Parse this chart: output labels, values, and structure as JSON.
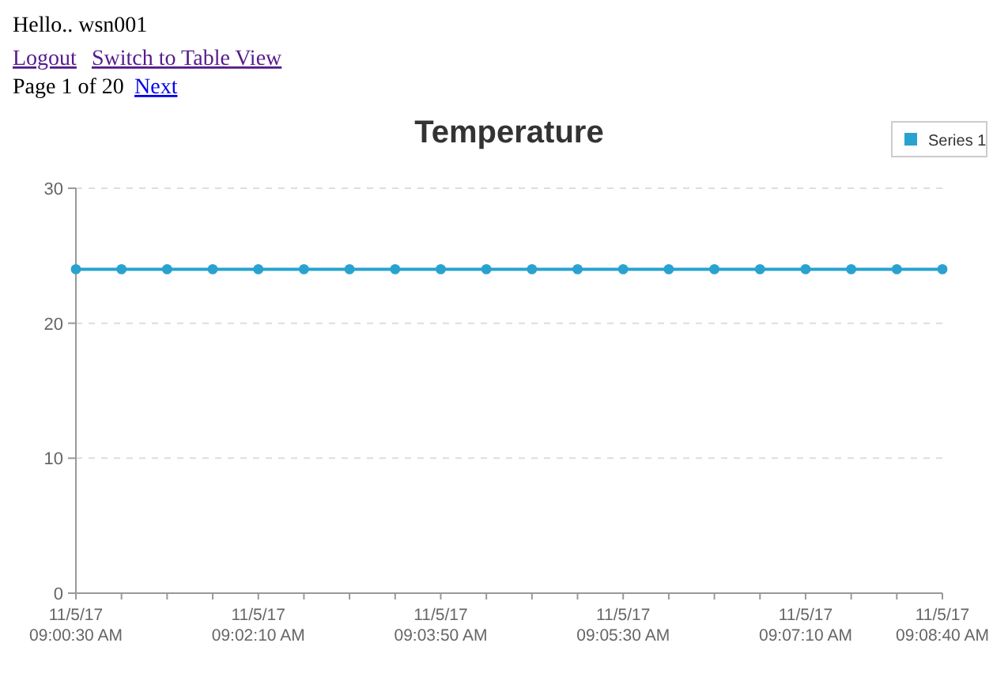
{
  "chart_data": {
    "type": "line",
    "title": "Temperature",
    "annotations": [
      "Hello.. wsn001",
      "Logout",
      "Switch to Table View",
      "Page 1 of 20",
      "Next"
    ],
    "categories": [
      "11/5/17\n09:00:30 AM",
      null,
      null,
      null,
      "11/5/17\n09:02:10 AM",
      null,
      null,
      null,
      "11/5/17\n09:03:50 AM",
      null,
      null,
      null,
      "11/5/17\n09:05:30 AM",
      null,
      null,
      null,
      "11/5/17\n09:07:10 AM",
      null,
      null,
      "11/5/17\n09:08:40 AM"
    ],
    "series": [
      {
        "name": "Series 1",
        "color": "#29a2d0",
        "values": [
          24,
          24,
          24,
          24,
          24,
          24,
          24,
          24,
          24,
          24,
          24,
          24,
          24,
          24,
          24,
          24,
          24,
          24,
          24,
          24
        ]
      }
    ],
    "ylim": [
      0,
      30
    ],
    "yticks": [
      0,
      10,
      20,
      30
    ],
    "grid": "y",
    "legend": "top right",
    "marker": "circle",
    "line_style": "solid"
  }
}
